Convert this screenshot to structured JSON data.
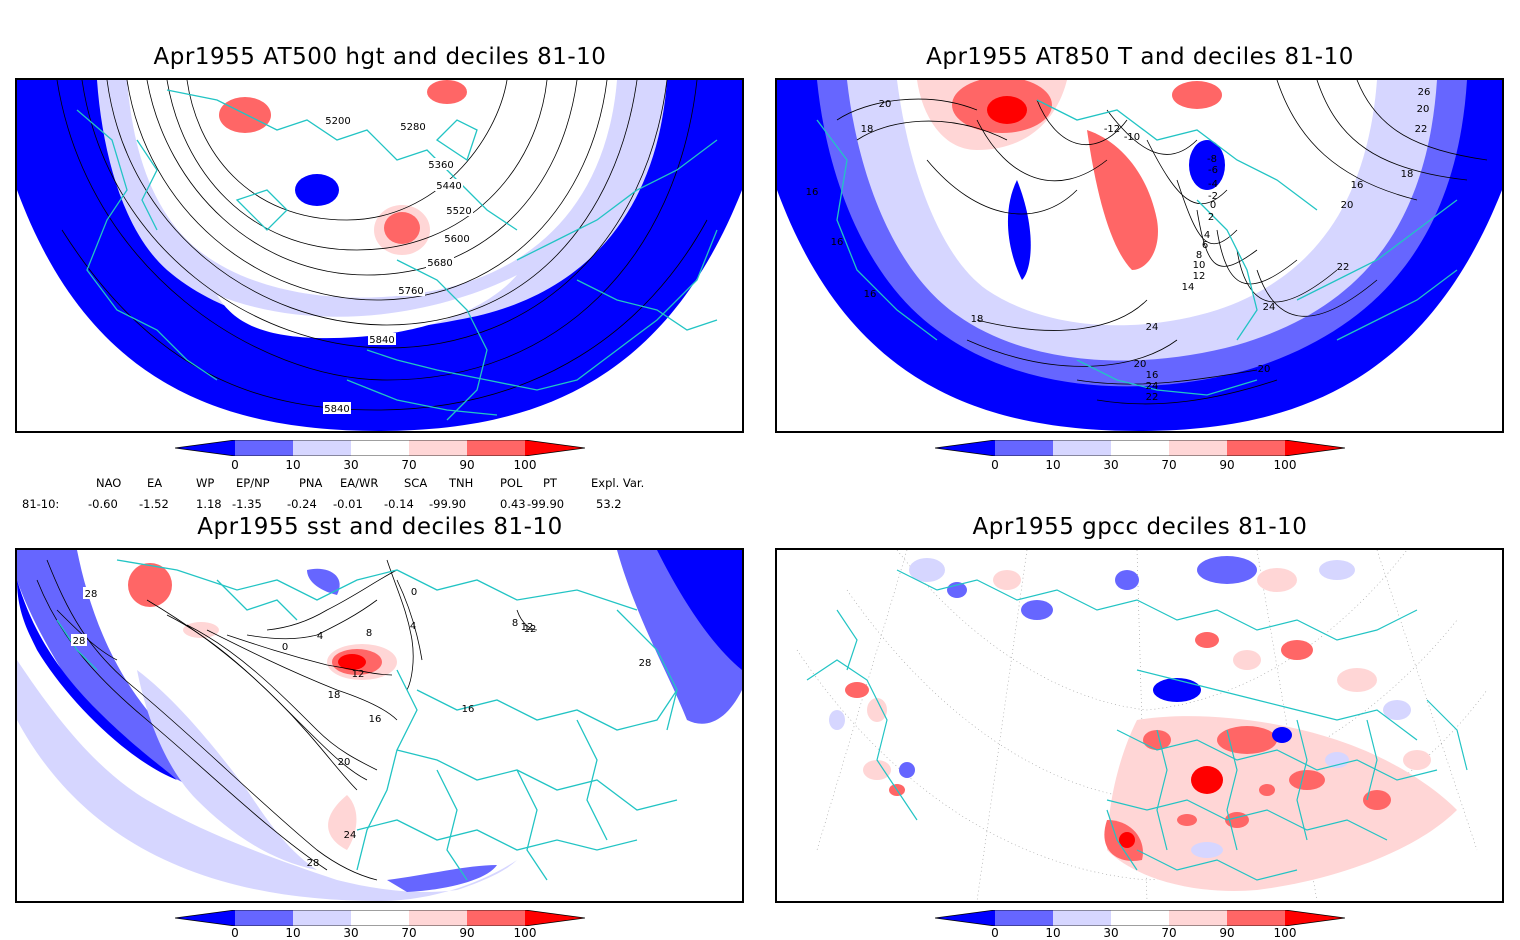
{
  "panels": [
    {
      "title": "Apr1955 AT500 hgt and deciles 81-10",
      "contour_labels": [
        "5200",
        "5280",
        "5360",
        "5440",
        "5520",
        "5600",
        "5680",
        "5760",
        "5840",
        "5840"
      ]
    },
    {
      "title": "Apr1955 AT850 T and deciles 81-10",
      "contour_labels": [
        "20",
        "18",
        "16",
        "16",
        "16",
        "-10",
        "-12",
        "-8",
        "-6",
        "-4",
        "-2",
        "0",
        "2",
        "4",
        "6",
        "8",
        "10",
        "12",
        "14",
        "16",
        "20",
        "22",
        "24",
        "26",
        "20",
        "22",
        "24",
        "18",
        "20",
        "16",
        "24",
        "22",
        "20",
        "18"
      ]
    },
    {
      "title": "Apr1955 sst and deciles 81-10",
      "contour_labels": [
        "28",
        "28",
        "0",
        "4",
        "8",
        "12",
        "16",
        "18",
        "20",
        "24",
        "28",
        "4",
        "12",
        "16",
        "0",
        "8",
        "12",
        "28"
      ]
    },
    {
      "title": "Apr1955 gpcc deciles 81-10",
      "contour_labels": []
    }
  ],
  "colorbar": {
    "ticks": [
      "0",
      "10",
      "30",
      "70",
      "90",
      "100"
    ],
    "colors": [
      "#0000ff",
      "#6666ff",
      "#d6d6ff",
      "#ffffff",
      "#ffd6d6",
      "#ff6666",
      "#ff0000"
    ]
  },
  "indices": {
    "headers": [
      "NAO",
      "EA",
      "WP",
      "EP/NP",
      "PNA",
      "EA/WR",
      "SCA",
      "TNH",
      "POL",
      "PT",
      "Expl. Var."
    ],
    "row_label": "81-10:",
    "values": [
      "-0.60",
      "-1.52",
      "1.18",
      "-1.35",
      "-0.24",
      "-0.01",
      "-0.14",
      "-99.90",
      "0.43",
      "-99.90",
      "53.2"
    ]
  },
  "colors": {
    "coast": "#22c4c4",
    "contour": "#000000",
    "strong_blue": "#0000ff",
    "mid_blue": "#6666ff",
    "light_blue": "#d6d6ff",
    "light_red": "#ffd6d6",
    "mid_red": "#ff6666",
    "strong_red": "#ff0000"
  }
}
